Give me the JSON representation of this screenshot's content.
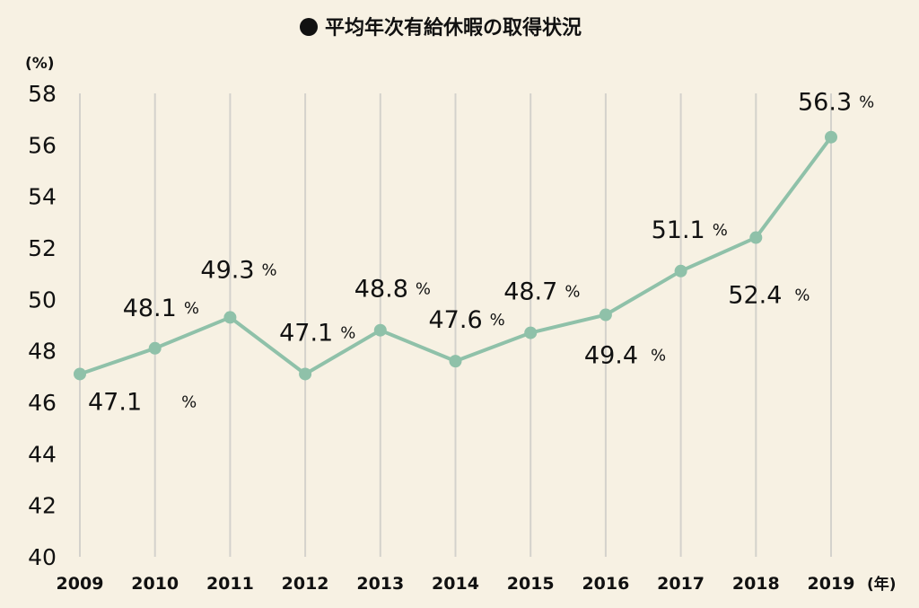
{
  "chart_data": {
    "type": "line",
    "title": "平均年次有給休暇の取得状況",
    "y_unit_label": "(%)",
    "x_unit_label": "(年)",
    "ylim": [
      40,
      58
    ],
    "y_ticks": [
      "40",
      "42",
      "44",
      "46",
      "48",
      "50",
      "52",
      "54",
      "56",
      "58"
    ],
    "x": [
      "2009",
      "2010",
      "2011",
      "2012",
      "2013",
      "2014",
      "2015",
      "2016",
      "2017",
      "2018",
      "2019"
    ],
    "values": [
      47.1,
      48.1,
      49.3,
      47.1,
      48.8,
      47.6,
      48.7,
      49.4,
      51.1,
      52.4,
      56.3
    ],
    "data_labels": [
      "47.1",
      "48.1",
      "49.3",
      "47.1",
      "48.8",
      "47.6",
      "48.7",
      "49.4",
      "51.1",
      "52.4",
      "56.3"
    ],
    "label_suffix": "%",
    "grid": "vertical",
    "line_color": "#8fc1a9",
    "marker_color": "#8fc1a9",
    "grid_color": "#d4d2cc",
    "background": "#f7f1e3"
  }
}
